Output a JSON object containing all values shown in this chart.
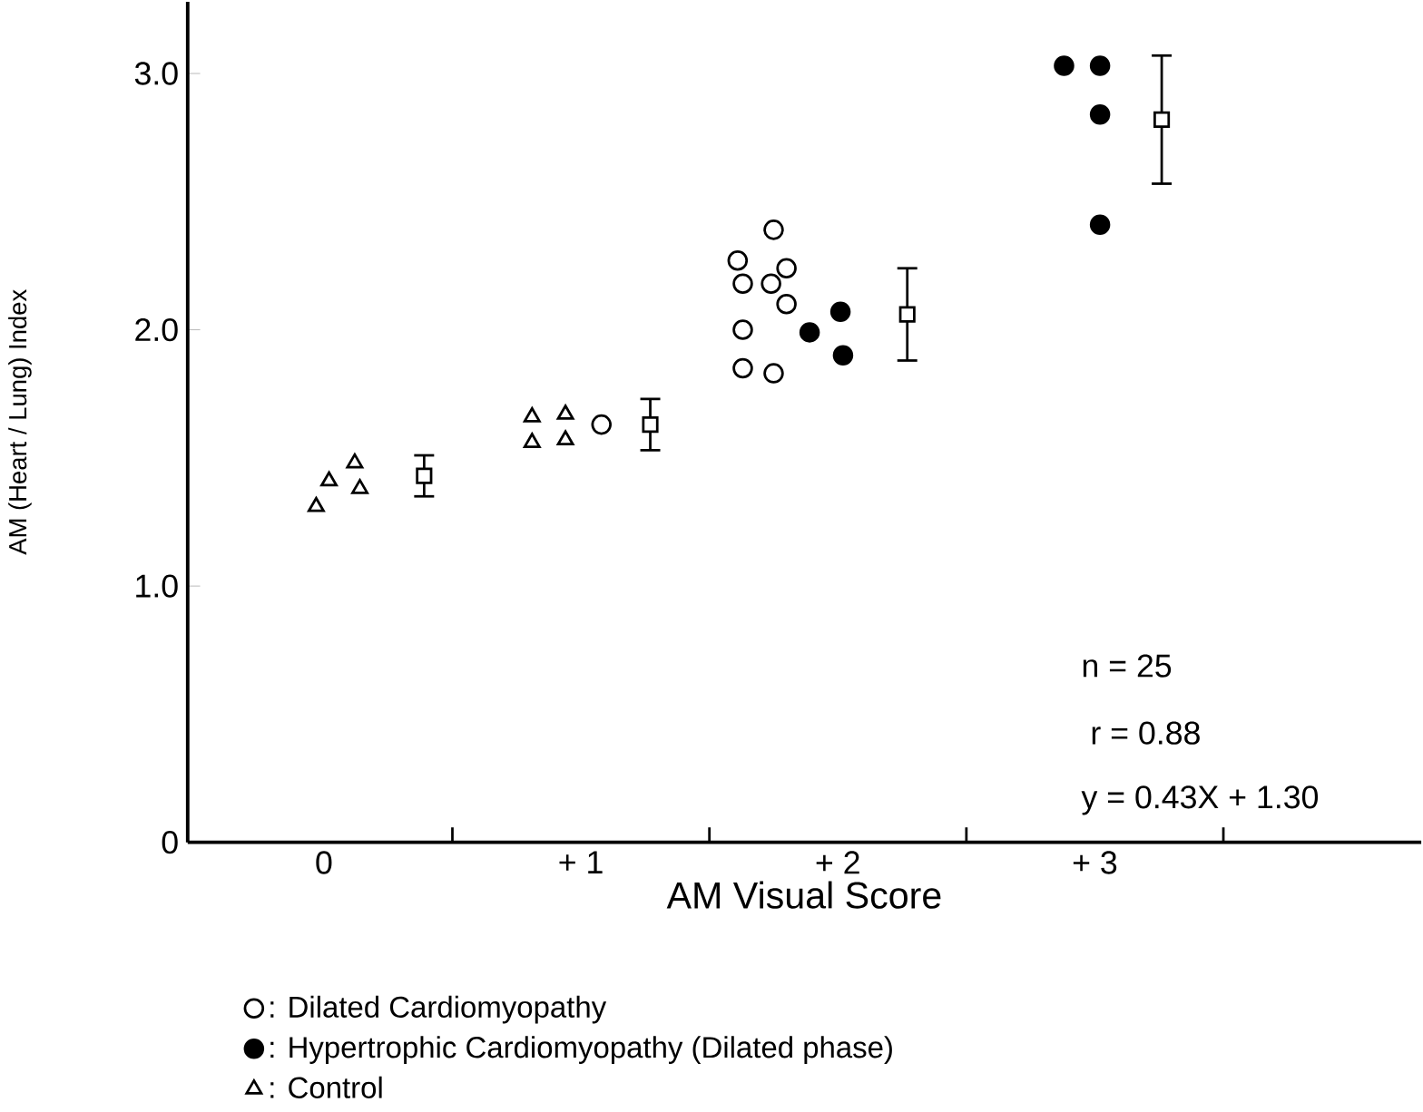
{
  "chart_data": {
    "type": "scatter",
    "xlabel": "AM  Visual Score",
    "ylabel": "AM  (Heart / Lung)  Index",
    "xlim": [
      -0.53,
      4.27
    ],
    "ylim": [
      0,
      3.28
    ],
    "xticks": [
      {
        "value": 0,
        "label": "0"
      },
      {
        "value": 0.5,
        "label": null
      },
      {
        "value": 1,
        "label": "+ 1"
      },
      {
        "value": 1.5,
        "label": null
      },
      {
        "value": 2,
        "label": "+ 2"
      },
      {
        "value": 2.5,
        "label": null
      },
      {
        "value": 3,
        "label": "+ 3"
      },
      {
        "value": 3.5,
        "label": null
      }
    ],
    "yticks": [
      0,
      {
        "value": 1,
        "label": "1.0"
      },
      {
        "value": 2,
        "label": "2.0"
      },
      {
        "value": 3,
        "label": "3.0"
      }
    ],
    "grid": false,
    "legend": "bottom",
    "series": [
      {
        "name": ": Dilated Cardiomyopathy",
        "color": "#ffffff",
        "marker": "circle",
        "x": [
          1.08,
          1.75,
          1.61,
          1.8,
          1.63,
          1.74,
          1.8,
          1.63,
          1.63,
          1.75
        ],
        "values": [
          1.63,
          2.39,
          2.27,
          2.24,
          2.18,
          2.18,
          2.1,
          2.0,
          1.85,
          1.83
        ]
      },
      {
        "name": ": Hypertrophic Cardiomyopathy  (Dilated phase)",
        "color": "#000000",
        "marker": "circle",
        "x": [
          1.89,
          2.01,
          2.02,
          2.88,
          3.02,
          3.02,
          3.02
        ],
        "values": [
          1.99,
          2.07,
          1.9,
          3.03,
          3.03,
          2.84,
          2.41
        ]
      },
      {
        "name": ": Control",
        "color": "#ffffff",
        "marker": "triangle",
        "x": [
          -0.03,
          0.02,
          0.12,
          0.14,
          0.81,
          0.94,
          0.81,
          0.94
        ],
        "values": [
          1.31,
          1.41,
          1.48,
          1.38,
          1.66,
          1.67,
          1.56,
          1.57
        ]
      },
      {
        "color": "#ffffff",
        "marker": "square",
        "x": [
          0.39,
          1.27,
          2.27,
          3.26
        ],
        "values": [
          1.43,
          1.63,
          2.06,
          2.82
        ],
        "errors": [
          0.08,
          0.1,
          0.18,
          0.25
        ]
      }
    ],
    "annotations": [
      "n = 25",
      " r = 0.88",
      "y = 0.43X + 1.30"
    ]
  }
}
